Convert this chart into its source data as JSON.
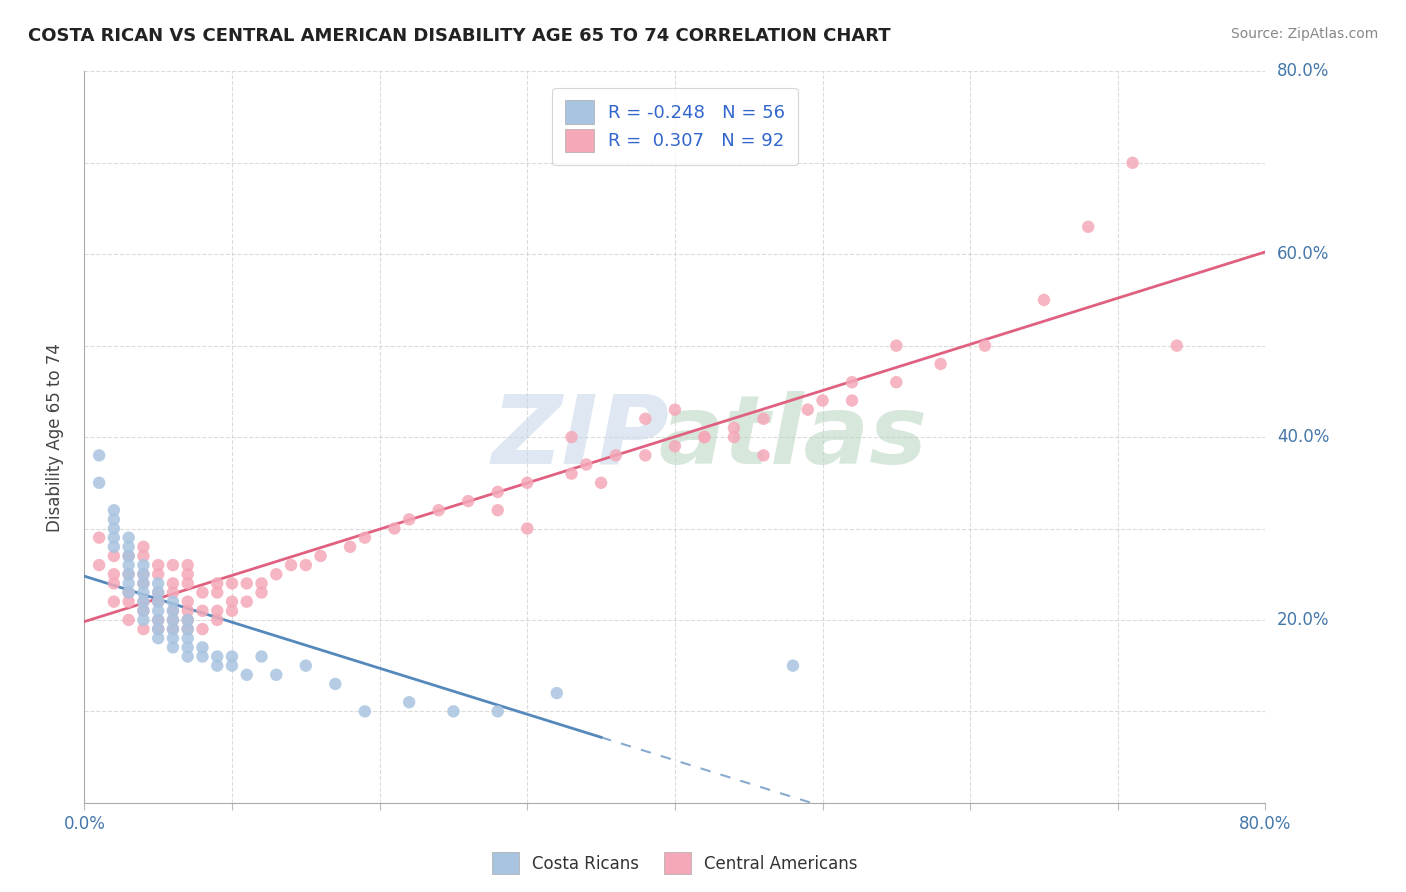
{
  "title": "COSTA RICAN VS CENTRAL AMERICAN DISABILITY AGE 65 TO 74 CORRELATION CHART",
  "source": "Source: ZipAtlas.com",
  "ylabel": "Disability Age 65 to 74",
  "xlim": [
    0.0,
    0.8
  ],
  "ylim": [
    0.0,
    0.8
  ],
  "xticks": [
    0.0,
    0.1,
    0.2,
    0.3,
    0.4,
    0.5,
    0.6,
    0.7,
    0.8
  ],
  "yticks": [
    0.0,
    0.1,
    0.2,
    0.3,
    0.4,
    0.5,
    0.6,
    0.7,
    0.8
  ],
  "blue_color": "#a8c4e0",
  "pink_color": "#f4a8b8",
  "blue_line_color": "#5588bb",
  "pink_line_color": "#e06080",
  "legend_r_blue": "-0.248",
  "legend_n_blue": "56",
  "legend_r_pink": "0.307",
  "legend_n_pink": "92",
  "blue_scatter_x": [
    0.01,
    0.01,
    0.02,
    0.02,
    0.02,
    0.02,
    0.02,
    0.03,
    0.03,
    0.03,
    0.03,
    0.03,
    0.03,
    0.03,
    0.04,
    0.04,
    0.04,
    0.04,
    0.04,
    0.04,
    0.04,
    0.05,
    0.05,
    0.05,
    0.05,
    0.05,
    0.05,
    0.05,
    0.06,
    0.06,
    0.06,
    0.06,
    0.06,
    0.06,
    0.07,
    0.07,
    0.07,
    0.07,
    0.07,
    0.08,
    0.08,
    0.09,
    0.09,
    0.1,
    0.1,
    0.11,
    0.12,
    0.13,
    0.15,
    0.17,
    0.19,
    0.22,
    0.25,
    0.28,
    0.32,
    0.48
  ],
  "blue_scatter_y": [
    0.38,
    0.35,
    0.28,
    0.29,
    0.3,
    0.31,
    0.32,
    0.23,
    0.24,
    0.25,
    0.26,
    0.27,
    0.28,
    0.29,
    0.2,
    0.21,
    0.22,
    0.23,
    0.24,
    0.25,
    0.26,
    0.18,
    0.19,
    0.2,
    0.21,
    0.22,
    0.23,
    0.24,
    0.17,
    0.18,
    0.19,
    0.2,
    0.21,
    0.22,
    0.16,
    0.17,
    0.18,
    0.19,
    0.2,
    0.16,
    0.17,
    0.15,
    0.16,
    0.15,
    0.16,
    0.14,
    0.16,
    0.14,
    0.15,
    0.13,
    0.1,
    0.11,
    0.1,
    0.1,
    0.12,
    0.15
  ],
  "pink_scatter_x": [
    0.01,
    0.01,
    0.02,
    0.02,
    0.02,
    0.02,
    0.03,
    0.03,
    0.03,
    0.03,
    0.03,
    0.04,
    0.04,
    0.04,
    0.04,
    0.04,
    0.04,
    0.04,
    0.05,
    0.05,
    0.05,
    0.05,
    0.05,
    0.05,
    0.06,
    0.06,
    0.06,
    0.06,
    0.06,
    0.06,
    0.07,
    0.07,
    0.07,
    0.07,
    0.07,
    0.07,
    0.07,
    0.08,
    0.08,
    0.08,
    0.09,
    0.09,
    0.09,
    0.09,
    0.1,
    0.1,
    0.1,
    0.11,
    0.11,
    0.12,
    0.12,
    0.13,
    0.14,
    0.15,
    0.16,
    0.18,
    0.19,
    0.21,
    0.22,
    0.24,
    0.26,
    0.28,
    0.3,
    0.33,
    0.34,
    0.36,
    0.38,
    0.4,
    0.42,
    0.44,
    0.46,
    0.49,
    0.52,
    0.55,
    0.58,
    0.61,
    0.65,
    0.68,
    0.71,
    0.74,
    0.33,
    0.4,
    0.42,
    0.38,
    0.28,
    0.3,
    0.35,
    0.44,
    0.46,
    0.5,
    0.52,
    0.55
  ],
  "pink_scatter_y": [
    0.26,
    0.29,
    0.22,
    0.24,
    0.25,
    0.27,
    0.2,
    0.22,
    0.23,
    0.25,
    0.27,
    0.19,
    0.21,
    0.22,
    0.24,
    0.25,
    0.27,
    0.28,
    0.19,
    0.2,
    0.22,
    0.23,
    0.25,
    0.26,
    0.19,
    0.2,
    0.21,
    0.23,
    0.24,
    0.26,
    0.19,
    0.2,
    0.21,
    0.22,
    0.24,
    0.25,
    0.26,
    0.19,
    0.21,
    0.23,
    0.2,
    0.21,
    0.23,
    0.24,
    0.21,
    0.22,
    0.24,
    0.22,
    0.24,
    0.23,
    0.24,
    0.25,
    0.26,
    0.26,
    0.27,
    0.28,
    0.29,
    0.3,
    0.31,
    0.32,
    0.33,
    0.34,
    0.35,
    0.36,
    0.37,
    0.38,
    0.38,
    0.39,
    0.4,
    0.41,
    0.42,
    0.43,
    0.44,
    0.46,
    0.48,
    0.5,
    0.55,
    0.63,
    0.7,
    0.5,
    0.4,
    0.43,
    0.4,
    0.42,
    0.32,
    0.3,
    0.35,
    0.4,
    0.38,
    0.44,
    0.46,
    0.5
  ]
}
